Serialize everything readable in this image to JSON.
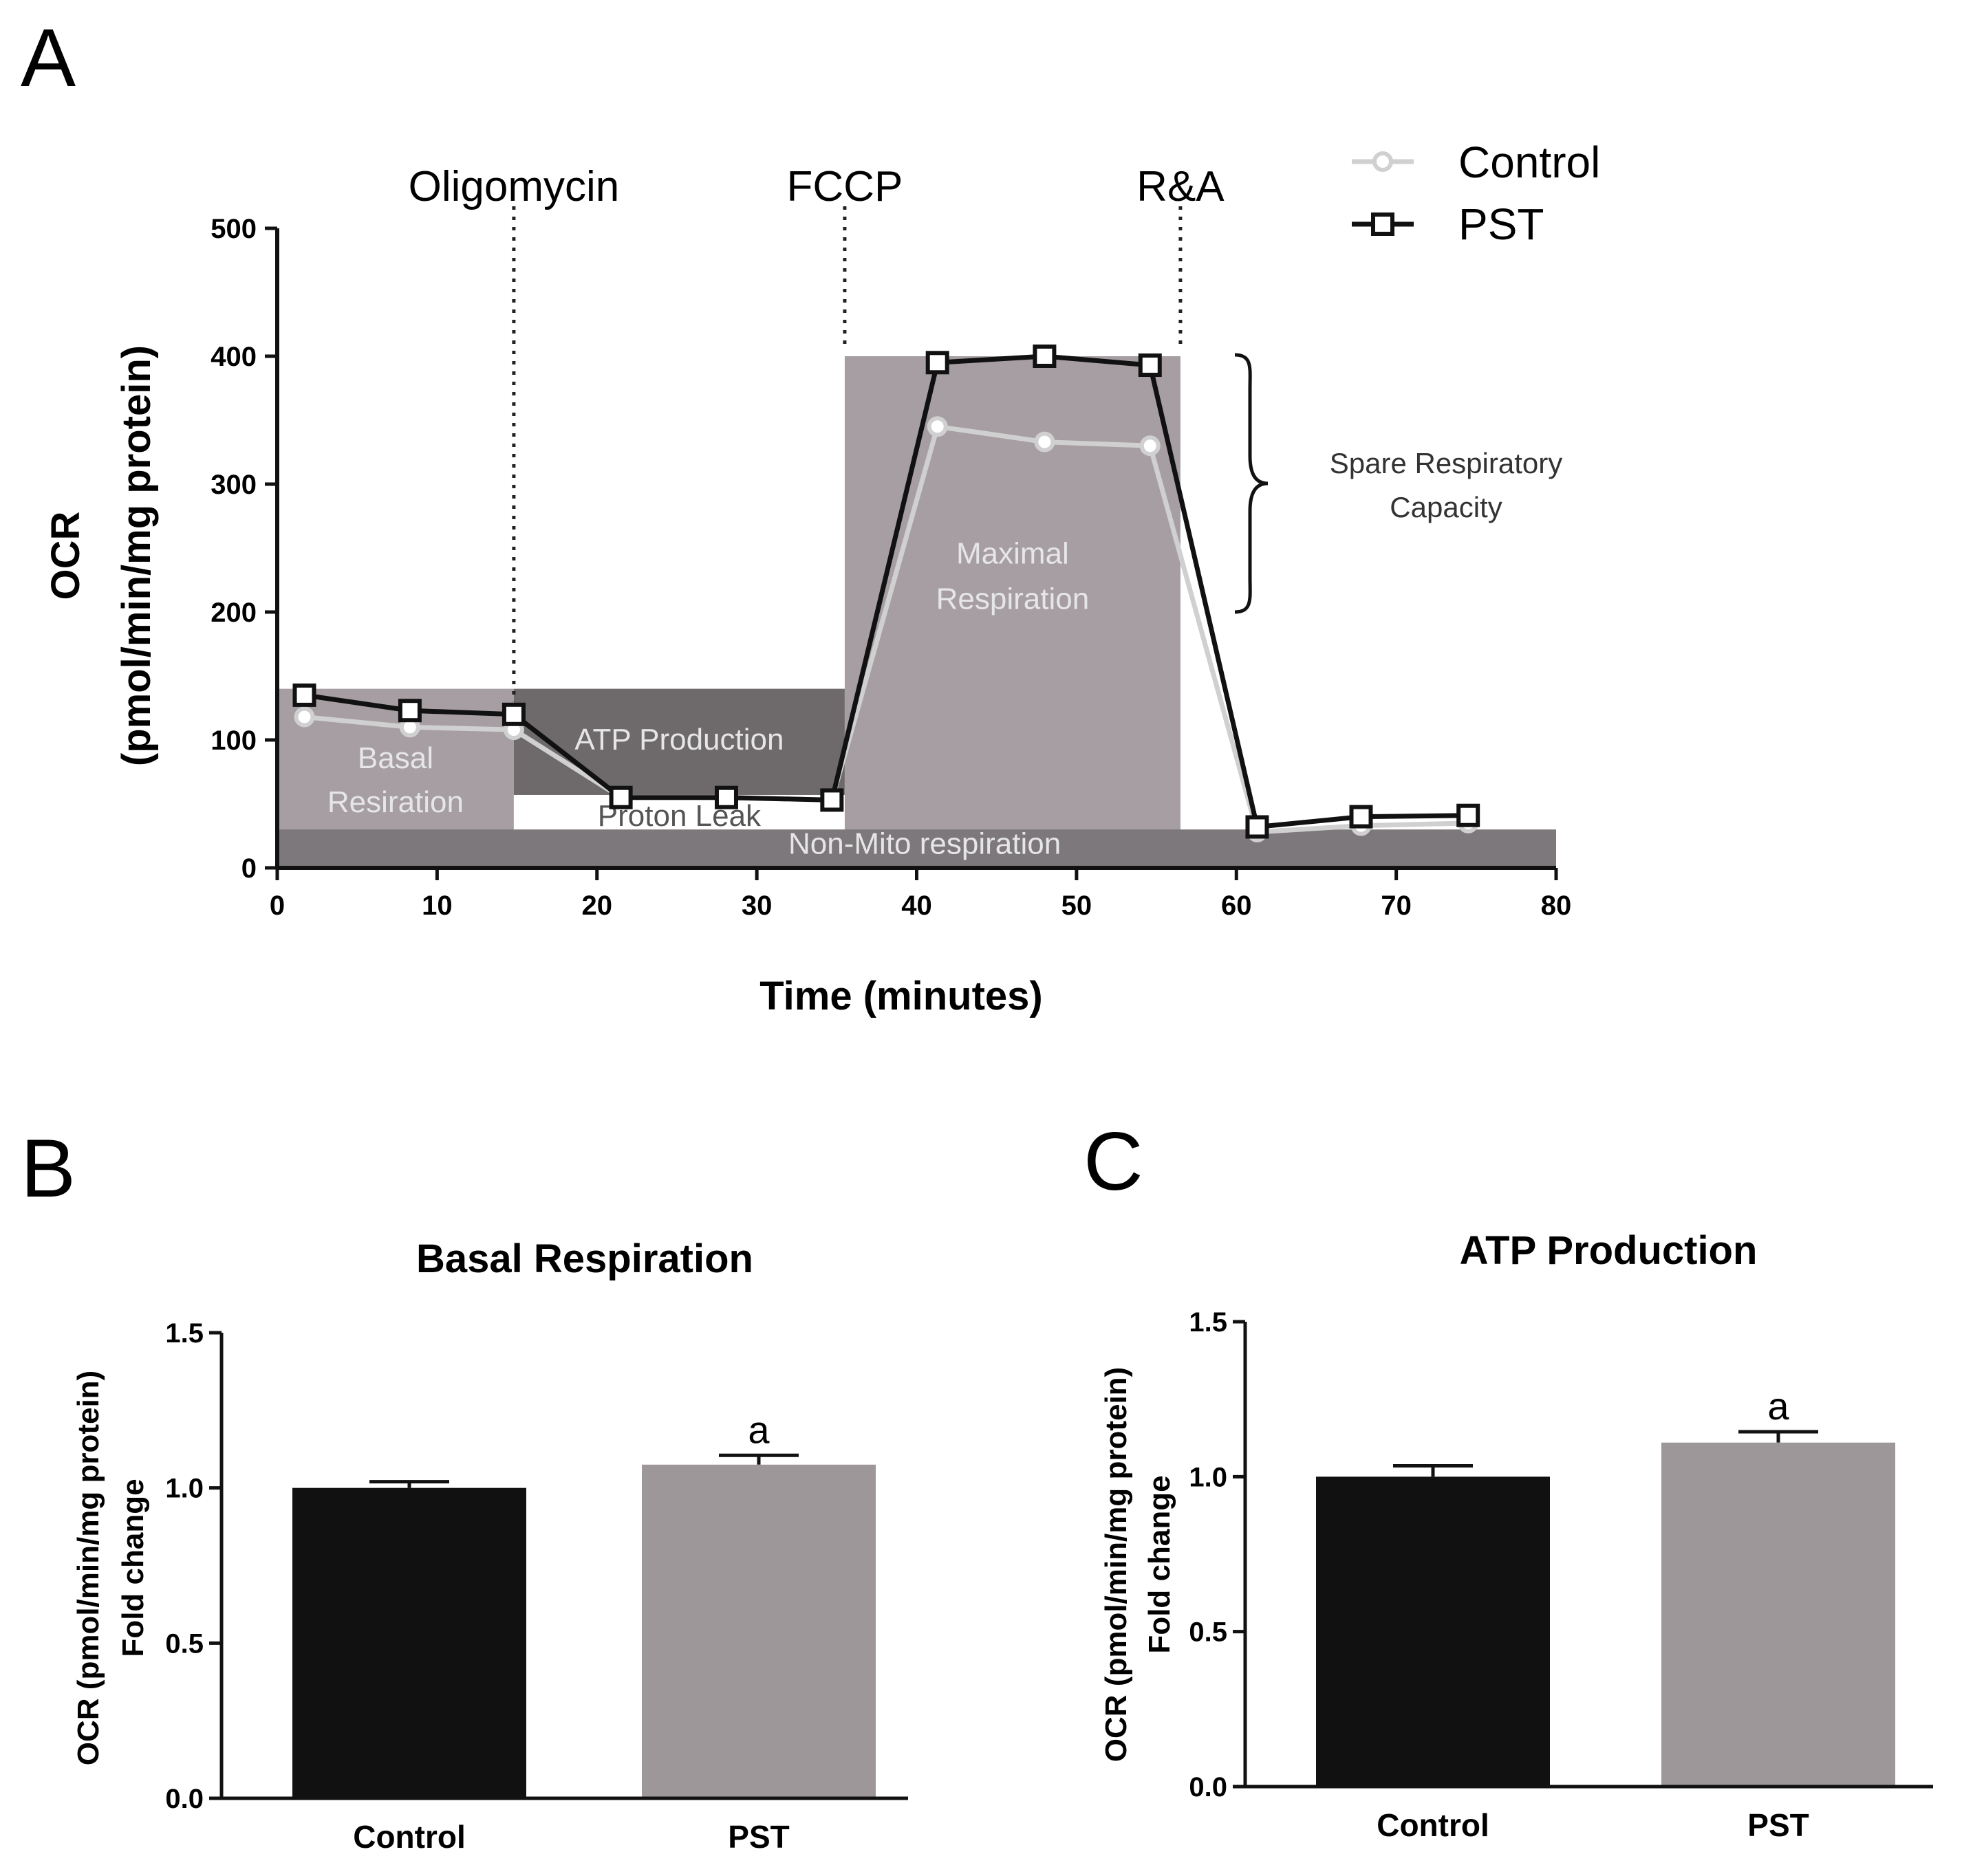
{
  "panel_labels": {
    "a": "A",
    "b": "B",
    "c": "C"
  },
  "chart_data": [
    {
      "type": "line",
      "panel": "A",
      "xlabel": "Time (minutes)",
      "ylabel_line1": "OCR",
      "ylabel_line2": "(pmol/min/mg protein)",
      "xlim": [
        0,
        80
      ],
      "ylim": [
        0,
        500
      ],
      "xticks": [
        0,
        10,
        20,
        30,
        40,
        50,
        60,
        70,
        80
      ],
      "yticks": [
        0,
        100,
        200,
        300,
        400,
        500
      ],
      "injections": [
        {
          "label": "Oligomycin",
          "x": 14.8
        },
        {
          "label": "FCCP",
          "x": 35.5
        },
        {
          "label": "R&A",
          "x": 56.5
        }
      ],
      "series": [
        {
          "name": "Control",
          "color": "#d0d0d0",
          "x": [
            1.7,
            8.3,
            14.8,
            21.5,
            28.1,
            34.7,
            41.3,
            48.0,
            54.6,
            61.3,
            67.8,
            74.5
          ],
          "y": [
            118,
            110,
            108,
            55,
            55,
            53,
            345,
            333,
            330,
            28,
            33,
            35
          ]
        },
        {
          "name": "PST",
          "color": "#111111",
          "x": [
            1.7,
            8.3,
            14.8,
            21.5,
            28.1,
            34.7,
            41.3,
            48.0,
            54.6,
            61.3,
            67.8,
            74.5
          ],
          "y": [
            135,
            123,
            120,
            55,
            55,
            53,
            395,
            400,
            393,
            32,
            40,
            41
          ]
        }
      ],
      "regions": [
        {
          "label_lines": [
            "Basal",
            "Resiration"
          ],
          "x0": 0,
          "x1": 14.8,
          "y0": 28,
          "y1": 140,
          "color": "#a69ea3"
        },
        {
          "label_lines": [
            "ATP Production"
          ],
          "x0": 14.8,
          "x1": 35.5,
          "y0": 57,
          "y1": 140,
          "color": "#6e6a6c"
        },
        {
          "label_lines": [
            "Proton Leak"
          ],
          "x0": 14.8,
          "x1": 35.5,
          "y0": 28,
          "y1": 57,
          "color": "#ffffff"
        },
        {
          "label_lines": [
            "Maximal",
            "Respiration"
          ],
          "x0": 35.5,
          "x1": 56.5,
          "y0": 28,
          "y1": 400,
          "color": "#a69ea3"
        },
        {
          "label_lines": [
            "Non-Mito respiration"
          ],
          "x0": 0,
          "x1": 80,
          "y0": 0,
          "y1": 30,
          "color": "#7d787b"
        }
      ],
      "annotation": {
        "lines": [
          "Spare Respiratory",
          "Capacity"
        ],
        "y_from": 200,
        "y_to": 400
      }
    },
    {
      "type": "bar",
      "panel": "B",
      "title": "Basal Respiration",
      "ylabel_line1": "OCR (pmol/min/mg protein)",
      "ylabel_line2": "Fold change",
      "categories": [
        "Control",
        "PST"
      ],
      "values": [
        1.0,
        1.075
      ],
      "errors": [
        0.02,
        0.03
      ],
      "colors": [
        "#111111",
        "#9e9799"
      ],
      "significance": [
        "",
        "a"
      ],
      "ylim": [
        0,
        1.5
      ],
      "yticks": [
        "0.0",
        "0.5",
        "1.0",
        "1.5"
      ]
    },
    {
      "type": "bar",
      "panel": "C",
      "title": "ATP Production",
      "ylabel_line1": "OCR (pmol/min/mg protein)",
      "ylabel_line2": "Fold change",
      "categories": [
        "Control",
        "PST"
      ],
      "values": [
        1.0,
        1.11
      ],
      "errors": [
        0.035,
        0.035
      ],
      "colors": [
        "#111111",
        "#9e9799"
      ],
      "significance": [
        "",
        "a"
      ],
      "ylim": [
        0,
        1.5
      ],
      "yticks": [
        "0.0",
        "0.5",
        "1.0",
        "1.5"
      ]
    }
  ]
}
